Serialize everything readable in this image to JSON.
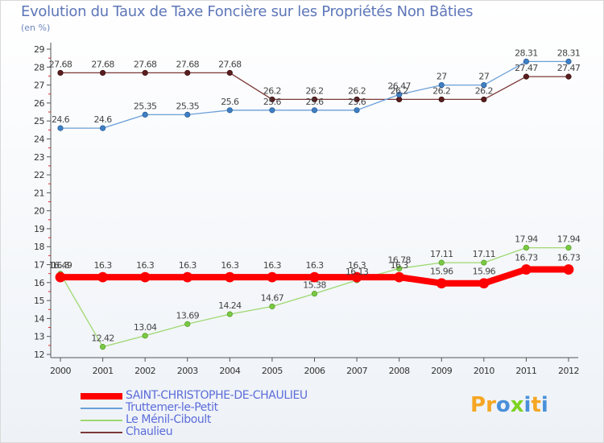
{
  "header": {
    "title": "Evolution du Taux de Taxe Foncière sur les Propriétés Non Bâties",
    "unit": "(en %)"
  },
  "brand": {
    "text": "Proxiti",
    "letters": [
      "P",
      "r",
      "o",
      "x",
      "i",
      "t",
      "i"
    ],
    "colors": [
      "#f5a623",
      "#f5a623",
      "#4a90d9",
      "#7ed321",
      "#4a90d9",
      "#f5a623",
      "#4a90d9"
    ]
  },
  "chart_data": {
    "type": "line",
    "title": "Evolution du Taux de Taxe Foncière sur les Propriétés Non Bâties",
    "ylabel": "(en %)",
    "xlabel": "",
    "x": [
      "2000",
      "2001",
      "2002",
      "2003",
      "2004",
      "2005",
      "2006",
      "2007",
      "2008",
      "2009",
      "2010",
      "2011",
      "2012"
    ],
    "y_ticks": [
      "12",
      "13",
      "14",
      "15",
      "16",
      "17",
      "18",
      "19",
      "20",
      "21",
      "22",
      "23",
      "24",
      "25",
      "26",
      "27",
      "28",
      "29"
    ],
    "ylim": [
      12,
      29
    ],
    "grid": false,
    "legend_position": "bottom-left",
    "series": [
      {
        "name": "SAINT-CHRISTOPHE-DE-CHAULIEU",
        "color": "#ff0000",
        "values": [
          16.3,
          16.3,
          16.3,
          16.3,
          16.3,
          16.3,
          16.3,
          16.3,
          16.3,
          15.96,
          15.96,
          16.73,
          16.73
        ],
        "labels": [
          "16.3",
          "16.3",
          "16.3",
          "16.3",
          "16.3",
          "16.3",
          "16.3",
          "16.3",
          "16.3",
          "15.96",
          "15.96",
          "16.73",
          "16.73"
        ]
      },
      {
        "name": "Truttemer-le-Petit",
        "color": "#6a9fd8",
        "values": [
          24.6,
          24.6,
          25.35,
          25.35,
          25.6,
          25.6,
          25.6,
          25.6,
          26.47,
          27,
          27,
          28.31,
          28.31
        ],
        "labels": [
          "24.6",
          "24.6",
          "25.35",
          "25.35",
          "25.6",
          "25.6",
          "25.6",
          "25.6",
          "26.47",
          "27",
          "27",
          "28.31",
          "28.31"
        ]
      },
      {
        "name": "Le Ménil-Ciboult",
        "color": "#9ed870",
        "values": [
          16.49,
          12.42,
          13.04,
          13.69,
          14.24,
          14.67,
          15.38,
          16.13,
          16.78,
          17.11,
          17.11,
          17.94,
          17.94
        ],
        "labels": [
          "16.49",
          "12.42",
          "13.04",
          "13.69",
          "14.24",
          "14.67",
          "15.38",
          "16.13",
          "16.78",
          "17.11",
          "17.11",
          "17.94",
          "17.94"
        ]
      },
      {
        "name": "Chaulieu",
        "color": "#7d3838",
        "values": [
          27.68,
          27.68,
          27.68,
          27.68,
          27.68,
          26.2,
          26.2,
          26.2,
          26.2,
          26.2,
          26.2,
          27.47,
          27.47
        ],
        "labels": [
          "27.68",
          "27.68",
          "27.68",
          "27.68",
          "27.68",
          "26.2",
          "26.2",
          "26.2",
          "26.2",
          "26.2",
          "26.2",
          "27.47",
          "27.47"
        ]
      }
    ]
  }
}
